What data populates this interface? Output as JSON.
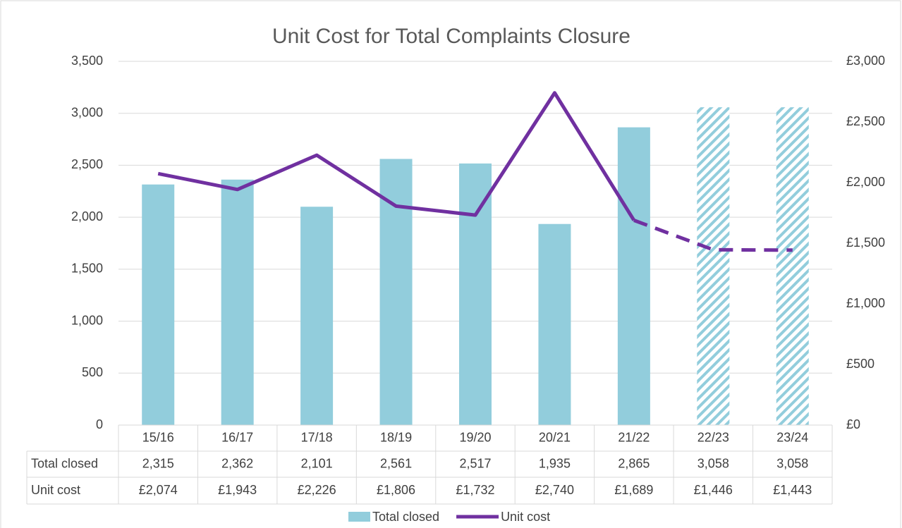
{
  "chart_data": {
    "type": "bar_line_table",
    "title": "Unit Cost for Total Complaints Closure",
    "categories": [
      "15/16",
      "16/17",
      "17/18",
      "18/19",
      "19/20",
      "20/21",
      "21/22",
      "22/23",
      "23/24"
    ],
    "series": [
      {
        "name": "Total closed",
        "type": "bar",
        "color": "#92cddc",
        "values": [
          2315,
          2362,
          2101,
          2561,
          2517,
          1935,
          2865,
          3058,
          3058
        ],
        "value_labels": [
          "2,315",
          "2,362",
          "2,101",
          "2,561",
          "2,517",
          "1,935",
          "2,865",
          "3,058",
          "3,058"
        ],
        "hatched": [
          false,
          false,
          false,
          false,
          false,
          false,
          false,
          true,
          true
        ]
      },
      {
        "name": "Unit cost",
        "type": "line",
        "color": "#7030a0",
        "axis": "y2",
        "values": [
          2074,
          1943,
          2226,
          1806,
          1732,
          2740,
          1689,
          1446,
          1443
        ],
        "value_labels": [
          "£2,074",
          "£1,943",
          "£2,226",
          "£1,806",
          "£1,732",
          "£2,740",
          "£1,689",
          "£1,446",
          "£1,443"
        ],
        "dashed": [
          false,
          false,
          false,
          false,
          false,
          false,
          false,
          true,
          true
        ]
      }
    ],
    "ylim": [
      0,
      3500
    ],
    "yticks": [
      0,
      500,
      {
        "value": 1000,
        "label": "1,000"
      },
      {
        "value": 1500,
        "label": "1,500"
      },
      {
        "value": 2000,
        "label": "2,000"
      },
      {
        "value": 2500,
        "label": "2,500"
      },
      {
        "value": 3000,
        "label": "3,000"
      },
      {
        "value": 3500,
        "label": "3,500"
      }
    ],
    "y2lim": [
      0,
      3000
    ],
    "y2ticks": [
      {
        "value": 0,
        "label": "£0"
      },
      {
        "value": 500,
        "label": "£500"
      },
      {
        "value": 1000,
        "label": "£1,000"
      },
      {
        "value": 1500,
        "label": "£1,500"
      },
      {
        "value": 2000,
        "label": "£2,000"
      },
      {
        "value": 2500,
        "label": "£2,500"
      },
      {
        "value": 3000,
        "label": "£3,000"
      }
    ],
    "grid": true,
    "legend": "bottom"
  }
}
